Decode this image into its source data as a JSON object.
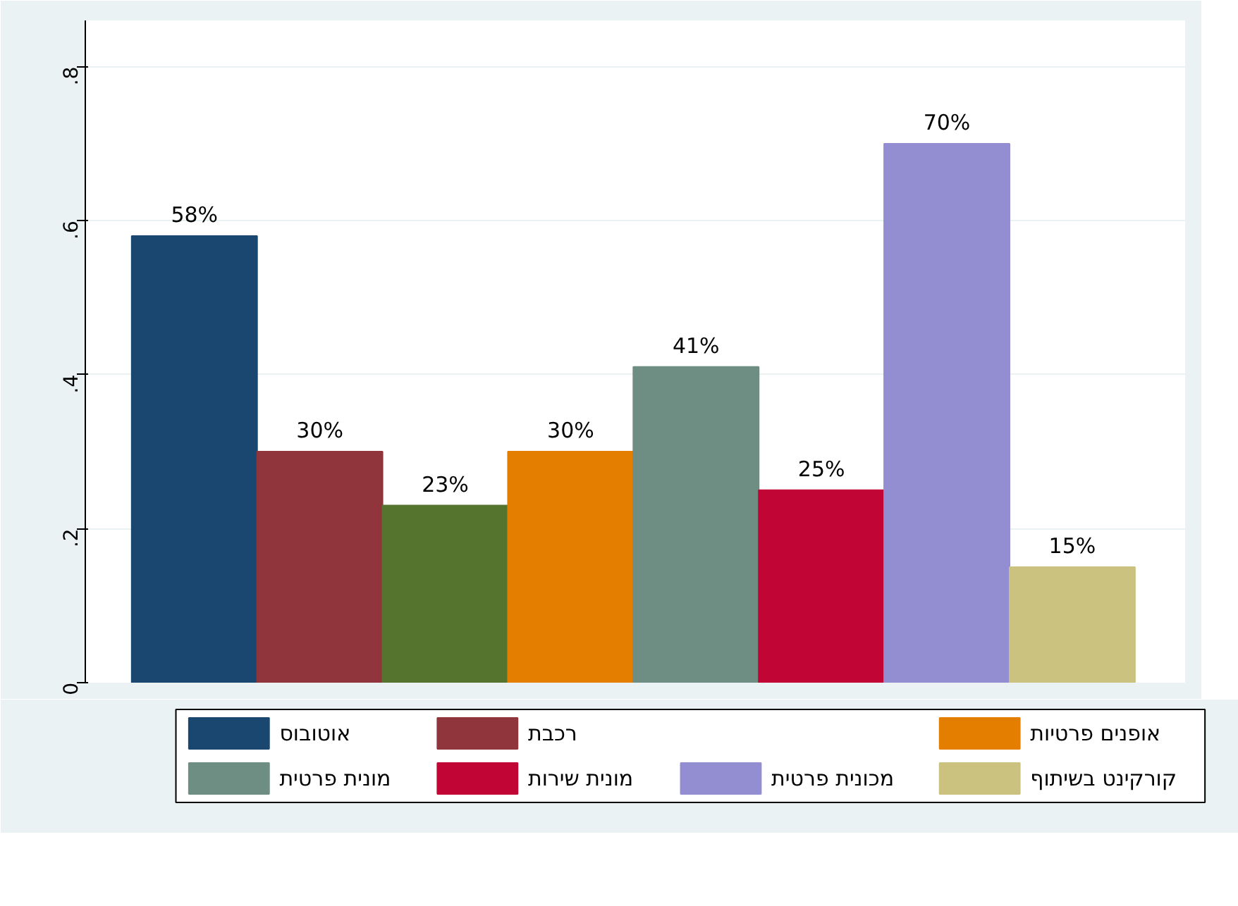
{
  "chart_data": {
    "type": "bar",
    "categories": [
      null
    ],
    "series": [
      {
        "name": "אוטובוס",
        "color": "#1a476f",
        "values": [
          0.58
        ],
        "value_labels": [
          "58%"
        ]
      },
      {
        "name": "רכבת",
        "color": "#90353b",
        "values": [
          0.3
        ],
        "value_labels": [
          "30%"
        ]
      },
      {
        "color": "#55752f",
        "values": [
          0.23
        ],
        "value_labels": [
          "23%"
        ]
      },
      {
        "name": "אופנים פרטיות",
        "color": "#e37e00",
        "values": [
          0.3
        ],
        "value_labels": [
          "30%"
        ]
      },
      {
        "name": "מונית פרטית",
        "color": "#6e8e84",
        "values": [
          0.41
        ],
        "value_labels": [
          "41%"
        ]
      },
      {
        "name": "מונית שירות",
        "color": "#c10534",
        "values": [
          0.25
        ],
        "value_labels": [
          "25%"
        ]
      },
      {
        "name": "מכונית פרטית",
        "color": "#938dd2",
        "values": [
          0.7
        ],
        "value_labels": [
          "70%"
        ]
      },
      {
        "name": "קורקינט בשיתוף",
        "color": "#cac27e",
        "values": [
          0.15
        ],
        "value_labels": [
          "15%"
        ]
      }
    ],
    "ylim": [
      0,
      0.86
    ],
    "yticks": [
      0,
      {
        "value": 0.2,
        "label": ".2"
      },
      {
        "value": 0.4,
        "label": ".4"
      },
      {
        "value": 0.6,
        "label": ".6"
      },
      {
        "value": 0.8,
        "label": ".8"
      }
    ],
    "grid": "y",
    "legend": "bottom"
  }
}
